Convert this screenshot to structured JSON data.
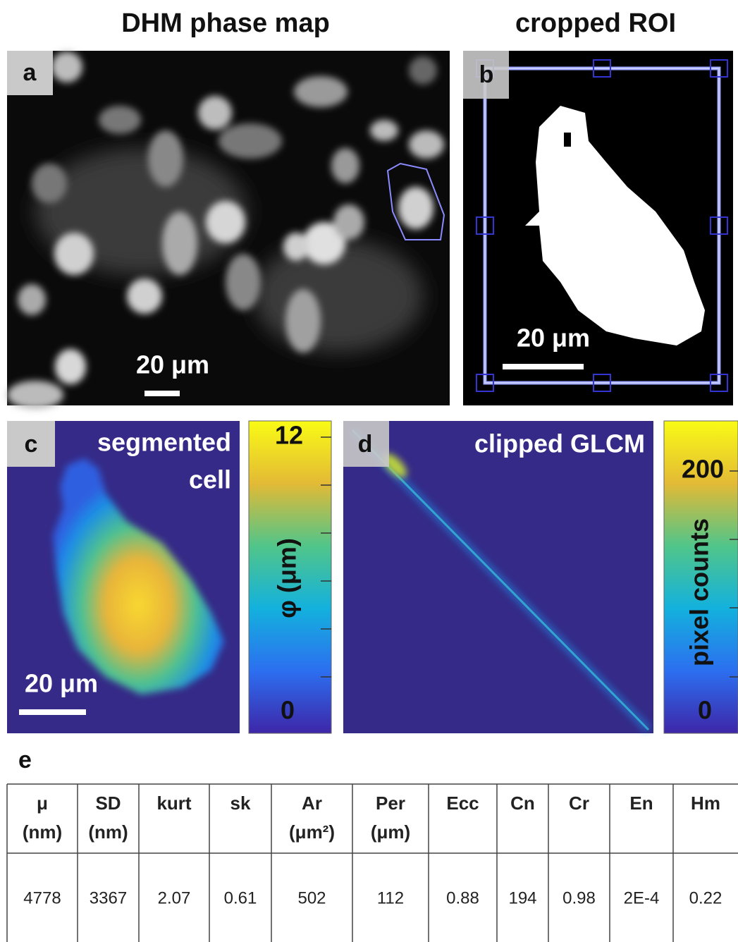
{
  "titles": [
    "DHM phase map",
    "cropped ROI"
  ],
  "panels": [
    {
      "label": "a",
      "scale_bar": "20 μm"
    },
    {
      "label": "b",
      "scale_bar": "20 μm"
    },
    {
      "label": "c",
      "caption": [
        "segmented",
        "cell"
      ],
      "scale_bar": "20 μm",
      "colorbar": {
        "axis_label": "φ (μm)",
        "max": "12",
        "min": "0"
      }
    },
    {
      "label": "d",
      "caption": [
        "clipped GLCM"
      ],
      "colorbar": {
        "axis_label": "pixel counts",
        "max": "200",
        "min": "0"
      }
    }
  ],
  "table": {
    "label": "e",
    "header": [
      [
        "μ",
        "(nm)"
      ],
      [
        "SD",
        "(nm)"
      ],
      [
        "kurt"
      ],
      [
        "sk"
      ],
      [
        "Ar",
        "(μm²)"
      ],
      [
        "Per",
        "(μm)"
      ],
      [
        "Ecc"
      ],
      [
        "Cn"
      ],
      [
        "Cr"
      ],
      [
        "En"
      ],
      [
        "Hm"
      ]
    ],
    "rows": [
      [
        "4778",
        "3367",
        "2.07",
        "0.61",
        "502",
        "112",
        "0.88",
        "194",
        "0.98",
        "2E-4",
        "0.22"
      ]
    ]
  }
}
